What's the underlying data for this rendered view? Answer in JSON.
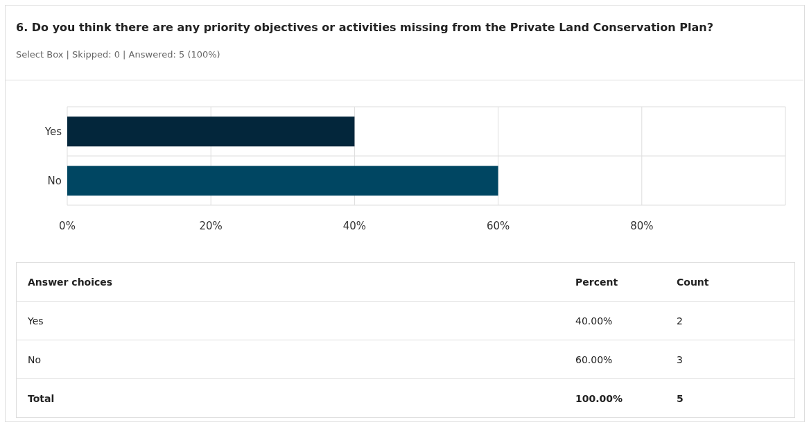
{
  "chart_data": {
    "type": "bar",
    "orientation": "horizontal",
    "title": "6. Do you think there are any priority objectives or activities missing from the Private Land Conservation Plan?",
    "subtitle": "Select Box | Skipped: 0 | Answered: 5 (100%)",
    "categories": [
      "Yes",
      "No"
    ],
    "values": [
      40,
      60
    ],
    "colors": [
      "#03263b",
      "#004662"
    ],
    "xlim": [
      0,
      100
    ],
    "xticks": [
      {
        "value": 0,
        "label": "0%"
      },
      {
        "value": 20,
        "label": "20%"
      },
      {
        "value": 40,
        "label": "40%"
      },
      {
        "value": 60,
        "label": "60%"
      },
      {
        "value": 80,
        "label": "80%"
      },
      {
        "value": 100,
        "label": null
      }
    ],
    "grid": true,
    "annotations": [
      "Answer choices",
      "Percent",
      "Count",
      "40.00%",
      "2",
      "60.00%",
      "3",
      "Total",
      "100.00%",
      "5"
    ]
  }
}
